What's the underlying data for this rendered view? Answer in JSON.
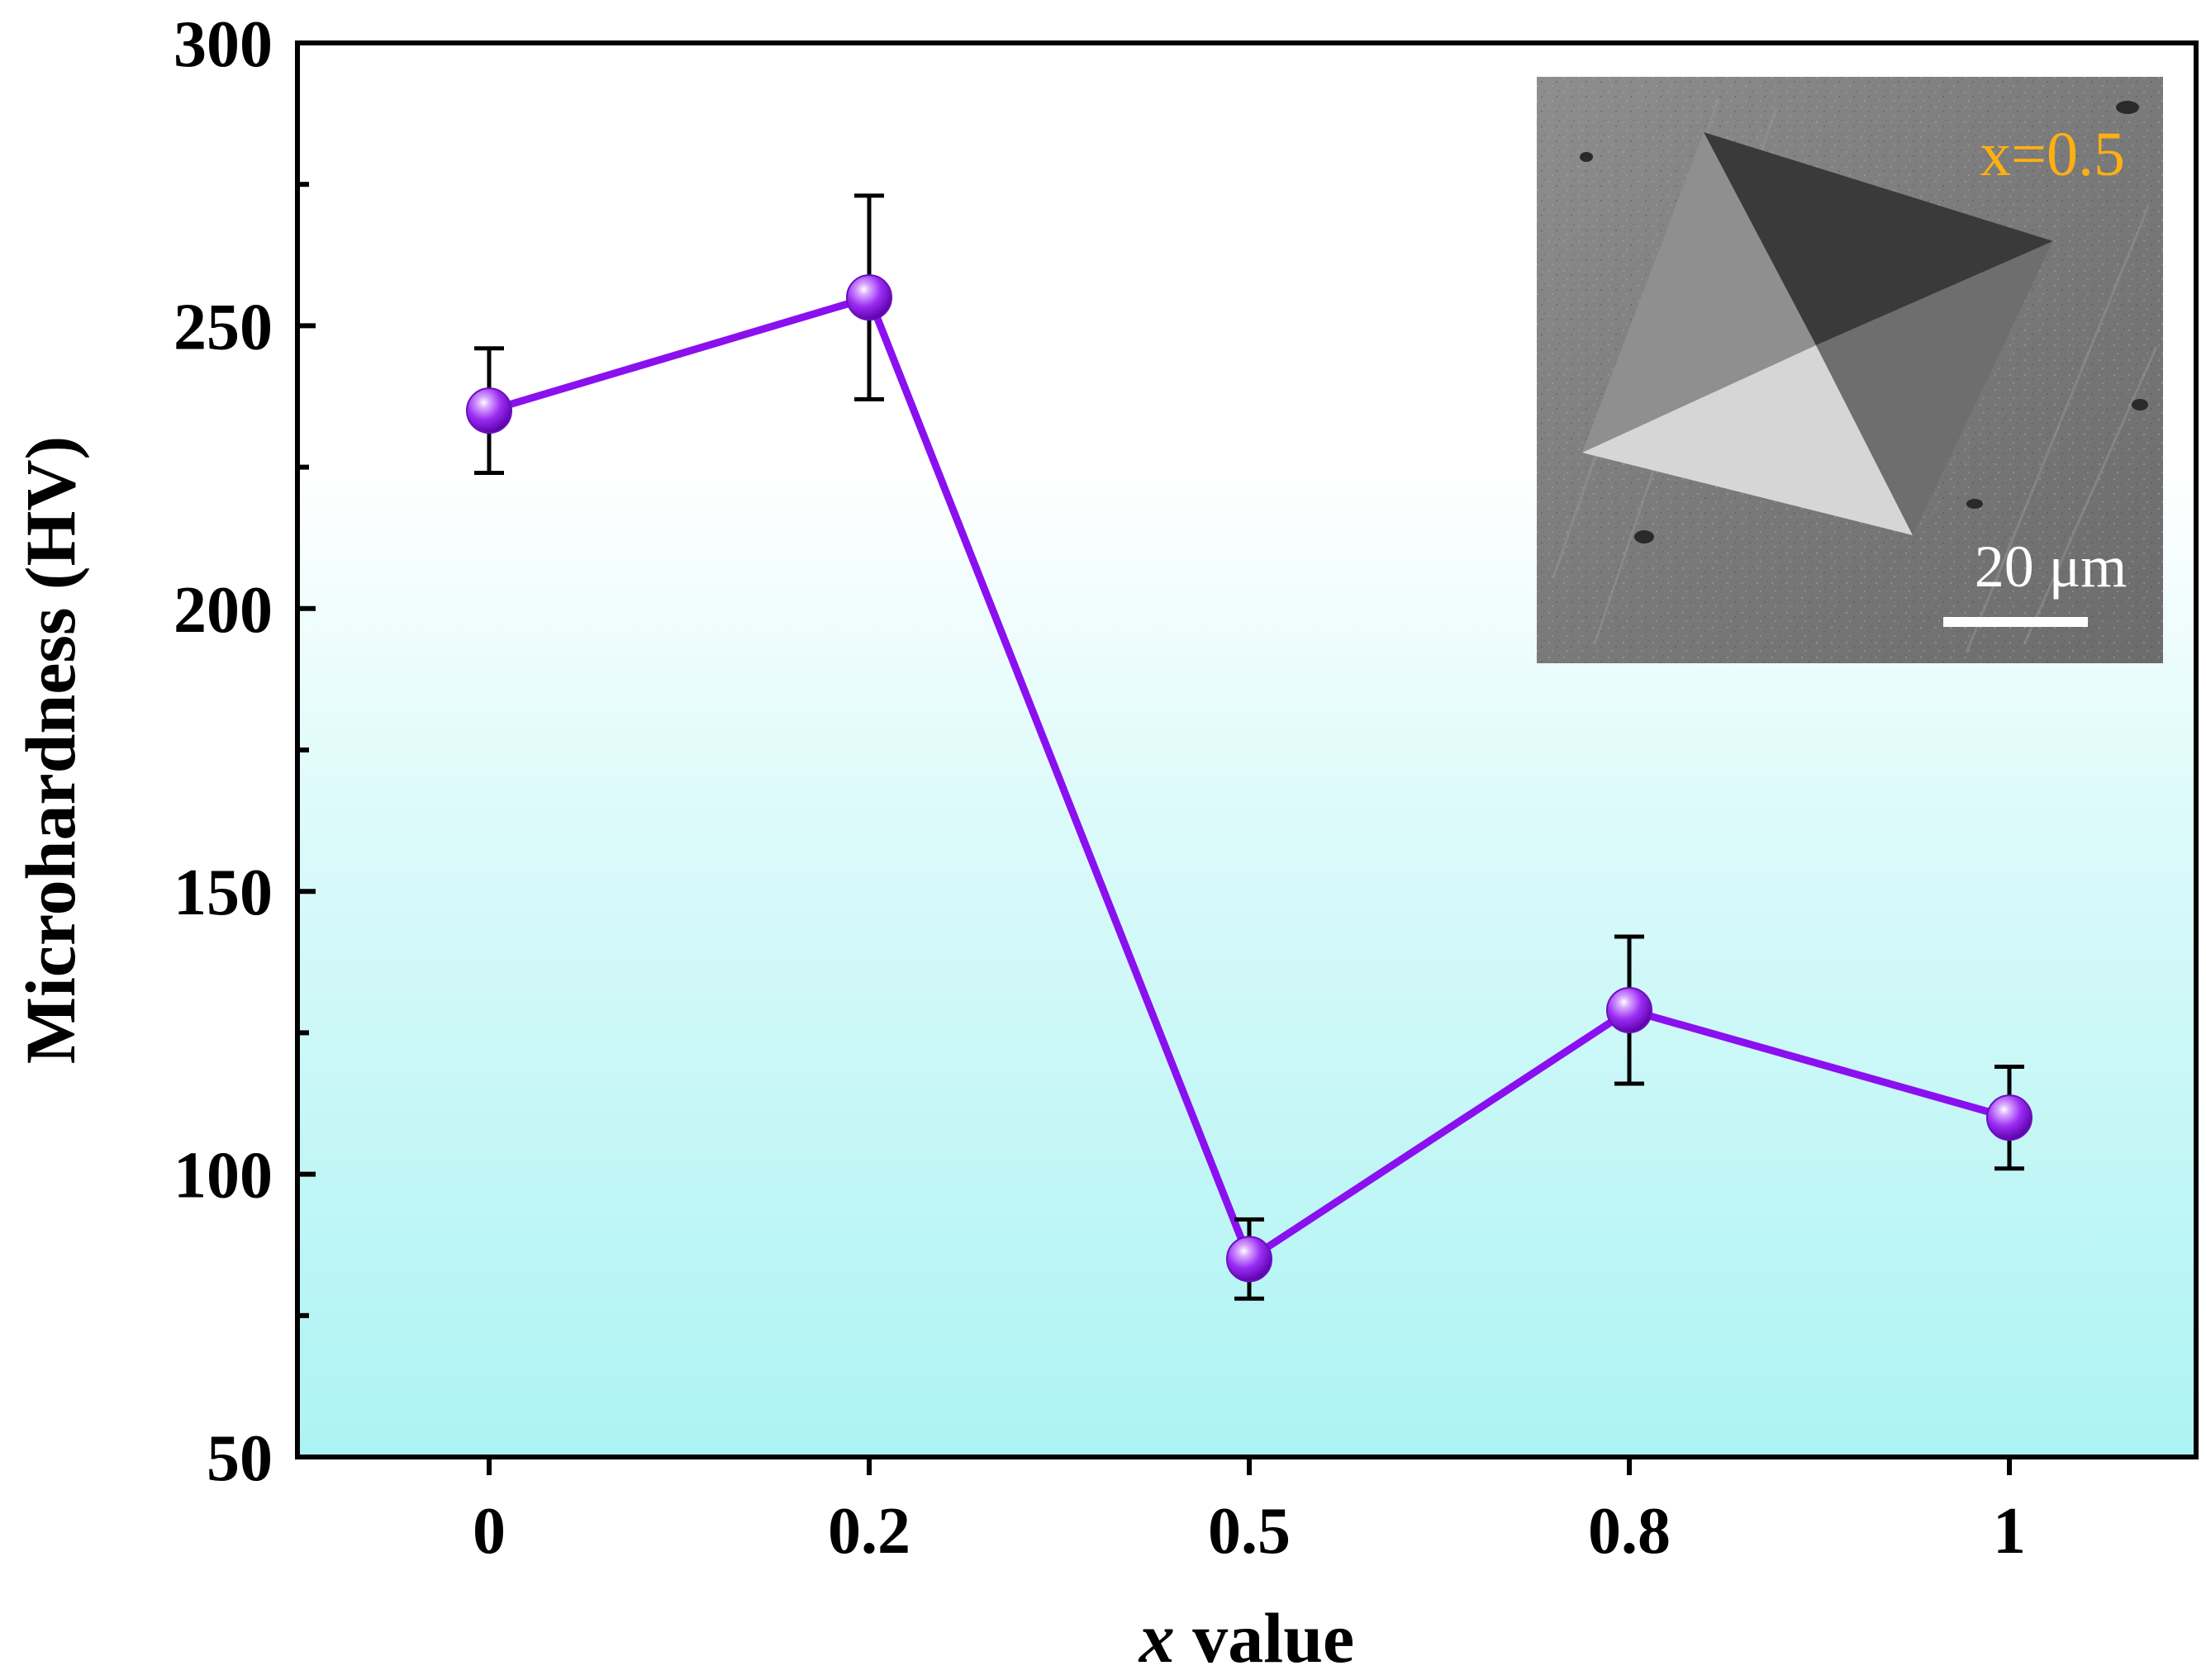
{
  "chart_data": {
    "type": "line",
    "title": "",
    "xlabel_var": "x",
    "xlabel_rest": " value",
    "ylabel": "Microhardness (HV)",
    "categories": [
      "0",
      "0.2",
      "0.5",
      "0.8",
      "1"
    ],
    "values": [
      235,
      255,
      85,
      129,
      110
    ],
    "error": [
      11,
      18,
      7,
      13,
      9
    ],
    "ylim": [
      50,
      300
    ],
    "yticks": [
      50,
      100,
      150,
      200,
      250,
      300
    ],
    "yminor_step": 25,
    "grid": false,
    "background_gradient": [
      "#ffffff",
      "#adf3f3"
    ],
    "line_color": "#8a10f0",
    "marker_color": "#8a10f0"
  },
  "inset": {
    "label": "x=0.5",
    "label_color": "#ffb010",
    "scale_bar_label": "20 μm"
  }
}
